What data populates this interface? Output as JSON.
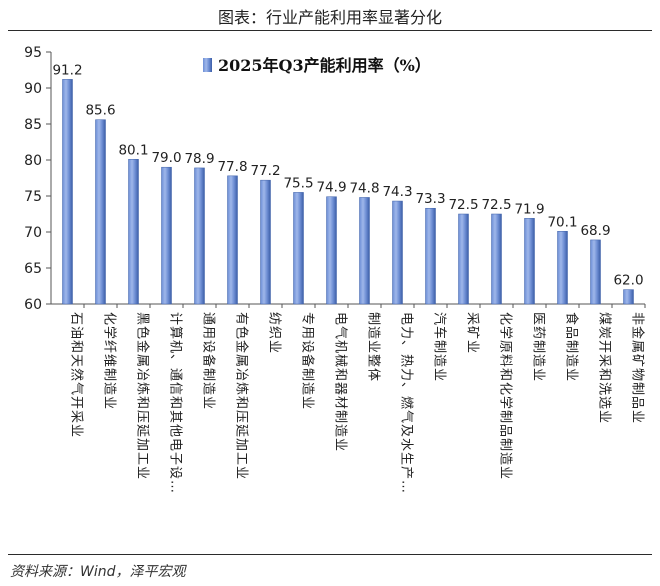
{
  "header": {
    "title": "图表：行业产能利用率显著分化"
  },
  "footer": {
    "source": "资料来源：Wind，泽平宏观"
  },
  "chart_data": {
    "type": "bar",
    "title": "",
    "xlabel": "",
    "ylabel": "",
    "ylim": [
      60,
      95
    ],
    "yticks": [
      60,
      65,
      70,
      75,
      80,
      85,
      90,
      95
    ],
    "grid": false,
    "legend": "top-center",
    "series": [
      {
        "name": "2025年Q3产能利用率（%）",
        "color": "#4a72c2",
        "values": [
          91.2,
          85.6,
          80.1,
          79.0,
          78.9,
          77.8,
          77.2,
          75.5,
          74.9,
          74.8,
          74.3,
          73.3,
          72.5,
          72.5,
          71.9,
          70.1,
          68.9,
          62.0
        ]
      }
    ],
    "categories": [
      "石油和天然气开采业",
      "化学纤维制造业",
      "黑色金属冶炼和压延加工业",
      "计算机、通信和其他电子设…",
      "通用设备制造业",
      "有色金属冶炼和压延加工业",
      "纺织业",
      "专用设备制造业",
      "电气机械和器材制造业",
      "制造业整体",
      "电力、热力、燃气及水生产…",
      "汽车制造业",
      "采矿业",
      "化学原料和化学制品制造业",
      "医药制造业",
      "食品制造业",
      "煤炭开采和洗选业",
      "非金属矿物制品业"
    ],
    "data_labels": [
      "91.2",
      "85.6",
      "80.1",
      "79.0",
      "78.9",
      "77.8",
      "77.2",
      "75.5",
      "74.9",
      "74.8",
      "74.3",
      "73.3",
      "72.5",
      "72.5",
      "71.9",
      "70.1",
      "68.9",
      "62.0"
    ]
  }
}
